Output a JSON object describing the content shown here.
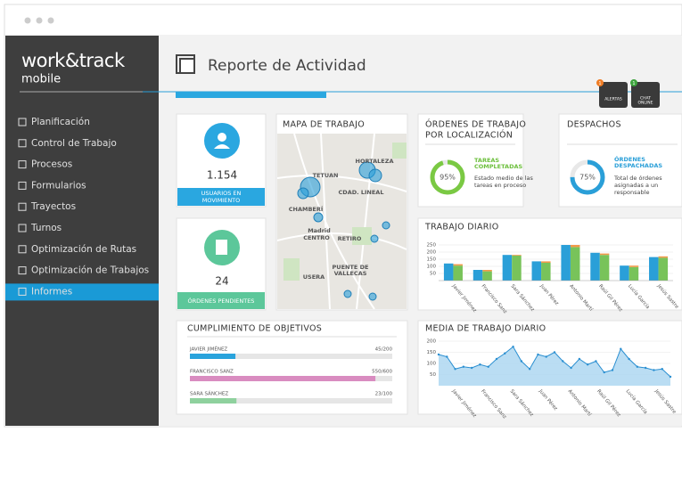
{
  "logo": {
    "name": "work&track",
    "sub": "mobile"
  },
  "menu": {
    "items": [
      "Planificación",
      "Control de Trabajo",
      "Procesos",
      "Formularios",
      "Trayectos",
      "Turnos",
      "Optimización de Rutas",
      "Optimización de Trabajos",
      "Informes"
    ],
    "selected": 8
  },
  "header": {
    "title": "Reporte de Actividad",
    "alerts": "ALERTAS",
    "chat": [
      "CHAT",
      "ONLINE"
    ],
    "alerts_count": 1,
    "chat_count": 1
  },
  "users": {
    "value": "1.154",
    "label": [
      "USUARIOS EN",
      "MOVIMIENTO"
    ]
  },
  "pending": {
    "value": 24,
    "label": "ÓRDENES PENDIENTES"
  },
  "map": {
    "title": "MAPA DE TRABAJO",
    "labels": [
      "TETUAN",
      "HORTALEZA",
      "CHAMBERÍ",
      "CDAD. LINEAL",
      "Madrid",
      "CENTRO",
      "RETIRO",
      "PUENTE DE",
      "VALLECAS",
      "USERA"
    ]
  },
  "orders": {
    "title": [
      "ÓRDENES DE TRABAJO",
      "POR LOCALIZACIÓN"
    ],
    "value": 95,
    "value_label": "95%",
    "status": [
      "TAREAS",
      "COMPLETADAS"
    ],
    "desc": [
      "Estado medio de las",
      "tareas en proceso"
    ]
  },
  "dispatch": {
    "title": "DESPACHOS",
    "value": 75,
    "value_label": "75%",
    "status": [
      "ÓRDENES",
      "DESPACHADAS"
    ],
    "desc": [
      "Total de órdenes",
      "asignadas a un",
      "responsable"
    ]
  },
  "objectives": {
    "title": "CUMPLIMIENTO DE OBJETIVOS",
    "rows": [
      {
        "name": "JAVIER JIMÉNEZ",
        "value": 45,
        "total": 200,
        "label": "45/200",
        "color": "#29a3dc"
      },
      {
        "name": "FRANCISCO SANZ",
        "value": 550,
        "total": 600,
        "label": "550/600",
        "color": "#d98cc0"
      },
      {
        "name": "SARA SÁNCHEZ",
        "value": 23,
        "total": 100,
        "label": "23/100",
        "color": "#8fd19e"
      }
    ]
  },
  "daily": {
    "type": "bar",
    "title": "TRABAJO DIARIO",
    "categories": [
      "Javier Jiménez",
      "Francisco Sanz",
      "Sara Sánchez",
      "Juan Pérez",
      "Antonio Martí",
      "Raúl Gil Pérez",
      "Lucía García",
      "Jesús Sastre"
    ],
    "ylim": [
      0,
      250
    ],
    "yticks": [
      50,
      100,
      150,
      200,
      250
    ],
    "series": [
      {
        "color": "#2a9fd8",
        "values": [
          120,
          75,
          180,
          135,
          250,
          195,
          105,
          165
        ]
      },
      {
        "color": "#78c35a",
        "values": [
          105,
          65,
          175,
          125,
          235,
          180,
          95,
          160
        ]
      },
      {
        "color": "#f2994a",
        "values": [
          10,
          10,
          5,
          10,
          15,
          10,
          10,
          10
        ]
      }
    ]
  },
  "mean": {
    "type": "area",
    "title": "MEDIA DE TRABAJO DIARIO",
    "categories": [
      "Javier Jiménez",
      "Francisco Sanz",
      "Sara Sánchez",
      "Juan Pérez",
      "Antonio Martí",
      "Raúl Gil Pérez",
      "Lucía García",
      "Jesús Sastre"
    ],
    "ylim": [
      0,
      200
    ],
    "yticks": [
      50,
      100,
      150,
      200
    ],
    "color": "#2a8fd1",
    "values": [
      140,
      130,
      75,
      85,
      80,
      95,
      85,
      120,
      145,
      175,
      110,
      75,
      140,
      130,
      150,
      110,
      80,
      120,
      95,
      110,
      60,
      70,
      165,
      120,
      85,
      80,
      70,
      75,
      40
    ]
  }
}
